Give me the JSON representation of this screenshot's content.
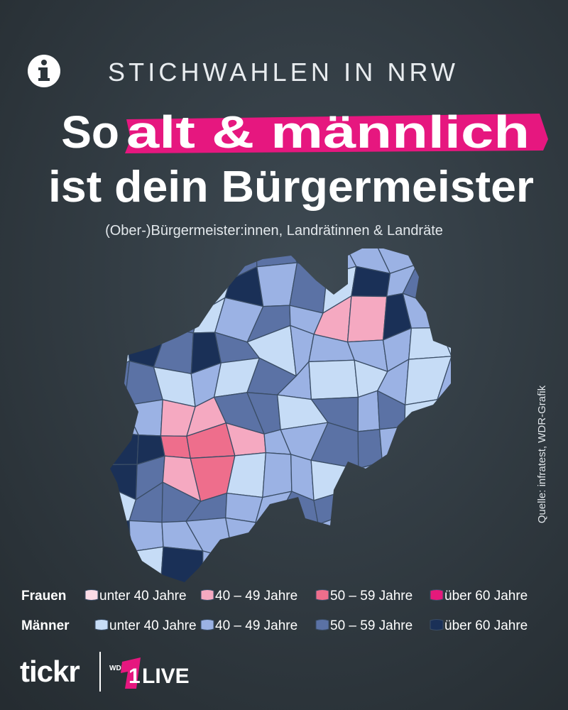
{
  "header": {
    "kicker": "STICHWAHLEN IN NRW",
    "headline": {
      "prefix": "So",
      "highlight": "alt & männlich",
      "line2": "ist dein Bürgermeister"
    },
    "subtitle": "(Ober-)Bürgermeister:innen, Landrätinnen & Landräte"
  },
  "source": "Quelle: infratest, WDR-Grafik",
  "legend": {
    "groups": [
      {
        "label": "Frauen",
        "items": [
          {
            "label": "unter 40 Jahre",
            "color": "#fbdbe6"
          },
          {
            "label": "40 – 49 Jahre",
            "color": "#f5a9c1"
          },
          {
            "label": "50 – 59 Jahre",
            "color": "#ee6e8c"
          },
          {
            "label": "über 60 Jahre",
            "color": "#e5197b"
          }
        ]
      },
      {
        "label": "Männer",
        "items": [
          {
            "label": "unter 40 Jahre",
            "color": "#c6dcf6"
          },
          {
            "label": "40 – 49 Jahre",
            "color": "#9bb2e4"
          },
          {
            "label": "50 – 59 Jahre",
            "color": "#5b72a5"
          },
          {
            "label": "über 60 Jahre",
            "color": "#1a3057"
          }
        ]
      }
    ]
  },
  "footer": {
    "brand": "tickr",
    "partner_small": "WDR",
    "partner_number": "1",
    "partner_name": "LIVE"
  }
}
